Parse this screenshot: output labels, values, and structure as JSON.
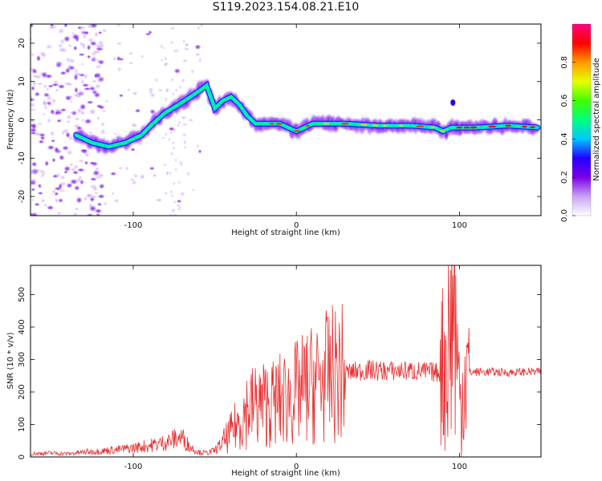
{
  "figure_title": "S119.2023.154.08.21.E10",
  "chart_data": [
    {
      "type": "heatmap",
      "xlabel": "Height of straight line (km)",
      "ylabel": "Frequency (Hz)",
      "xlim": [
        -163,
        150
      ],
      "ylim": [
        -25,
        25
      ],
      "x_ticks": [
        -100,
        0,
        100
      ],
      "y_ticks": [
        -20,
        -10,
        0,
        10,
        20
      ],
      "colorbar": {
        "label": "Normalized spectral amplitude",
        "range": [
          0.0,
          1.0
        ],
        "ticks": [
          "0.0",
          "0.2",
          "0.4",
          "0.6",
          "0.8"
        ],
        "colors": [
          "#ffffff",
          "#c9a3f5",
          "#7a00e6",
          "#2200ff",
          "#00c8ff",
          "#00ff80",
          "#40ff00",
          "#e6ff00",
          "#ff9900",
          "#ff0000",
          "#ff0080"
        ]
      },
      "ridge": {
        "x": [
          -135,
          -125,
          -115,
          -105,
          -95,
          -88,
          -80,
          -72,
          -65,
          -58,
          -55,
          -50,
          -45,
          -40,
          -35,
          -30,
          -25,
          -20,
          -10,
          -5,
          0,
          10,
          30,
          50,
          70,
          85,
          90,
          95,
          110,
          130,
          148
        ],
        "y": [
          -4,
          -6,
          -7,
          -6,
          -4,
          -1,
          2,
          4,
          6,
          8,
          9,
          3,
          5,
          6,
          4,
          1,
          -1,
          -1,
          -1,
          -2,
          -3,
          -1,
          -1,
          -1.5,
          -1.5,
          -2,
          -3,
          -2,
          -2,
          -1.5,
          -2
        ]
      }
    },
    {
      "type": "line",
      "xlabel": "Height of straight line (km)",
      "ylabel": "SNR (10 * v/v)",
      "xlim": [
        -163,
        150
      ],
      "ylim": [
        0,
        590
      ],
      "x_ticks": [
        -100,
        0,
        100
      ],
      "y_ticks": [
        0,
        100,
        200,
        300,
        400,
        500
      ],
      "color": "#e83030",
      "x": [
        -163,
        -150,
        -140,
        -130,
        -120,
        -110,
        -100,
        -90,
        -80,
        -75,
        -70,
        -65,
        -60,
        -55,
        -50,
        -45,
        -40,
        -35,
        -30,
        -25,
        -20,
        -15,
        -10,
        -5,
        0,
        5,
        10,
        15,
        20,
        25,
        30,
        35,
        40,
        45,
        50,
        60,
        70,
        80,
        88,
        92,
        95,
        97,
        99,
        101,
        103,
        105,
        110,
        120,
        130,
        140,
        150
      ],
      "y": [
        10,
        12,
        10,
        15,
        18,
        22,
        28,
        35,
        45,
        55,
        60,
        30,
        15,
        12,
        20,
        45,
        75,
        110,
        150,
        160,
        165,
        165,
        175,
        185,
        195,
        210,
        225,
        235,
        250,
        255,
        260,
        262,
        265,
        268,
        265,
        265,
        265,
        262,
        260,
        300,
        420,
        500,
        250,
        150,
        265,
        260,
        262,
        262,
        260,
        262,
        262
      ]
    }
  ]
}
